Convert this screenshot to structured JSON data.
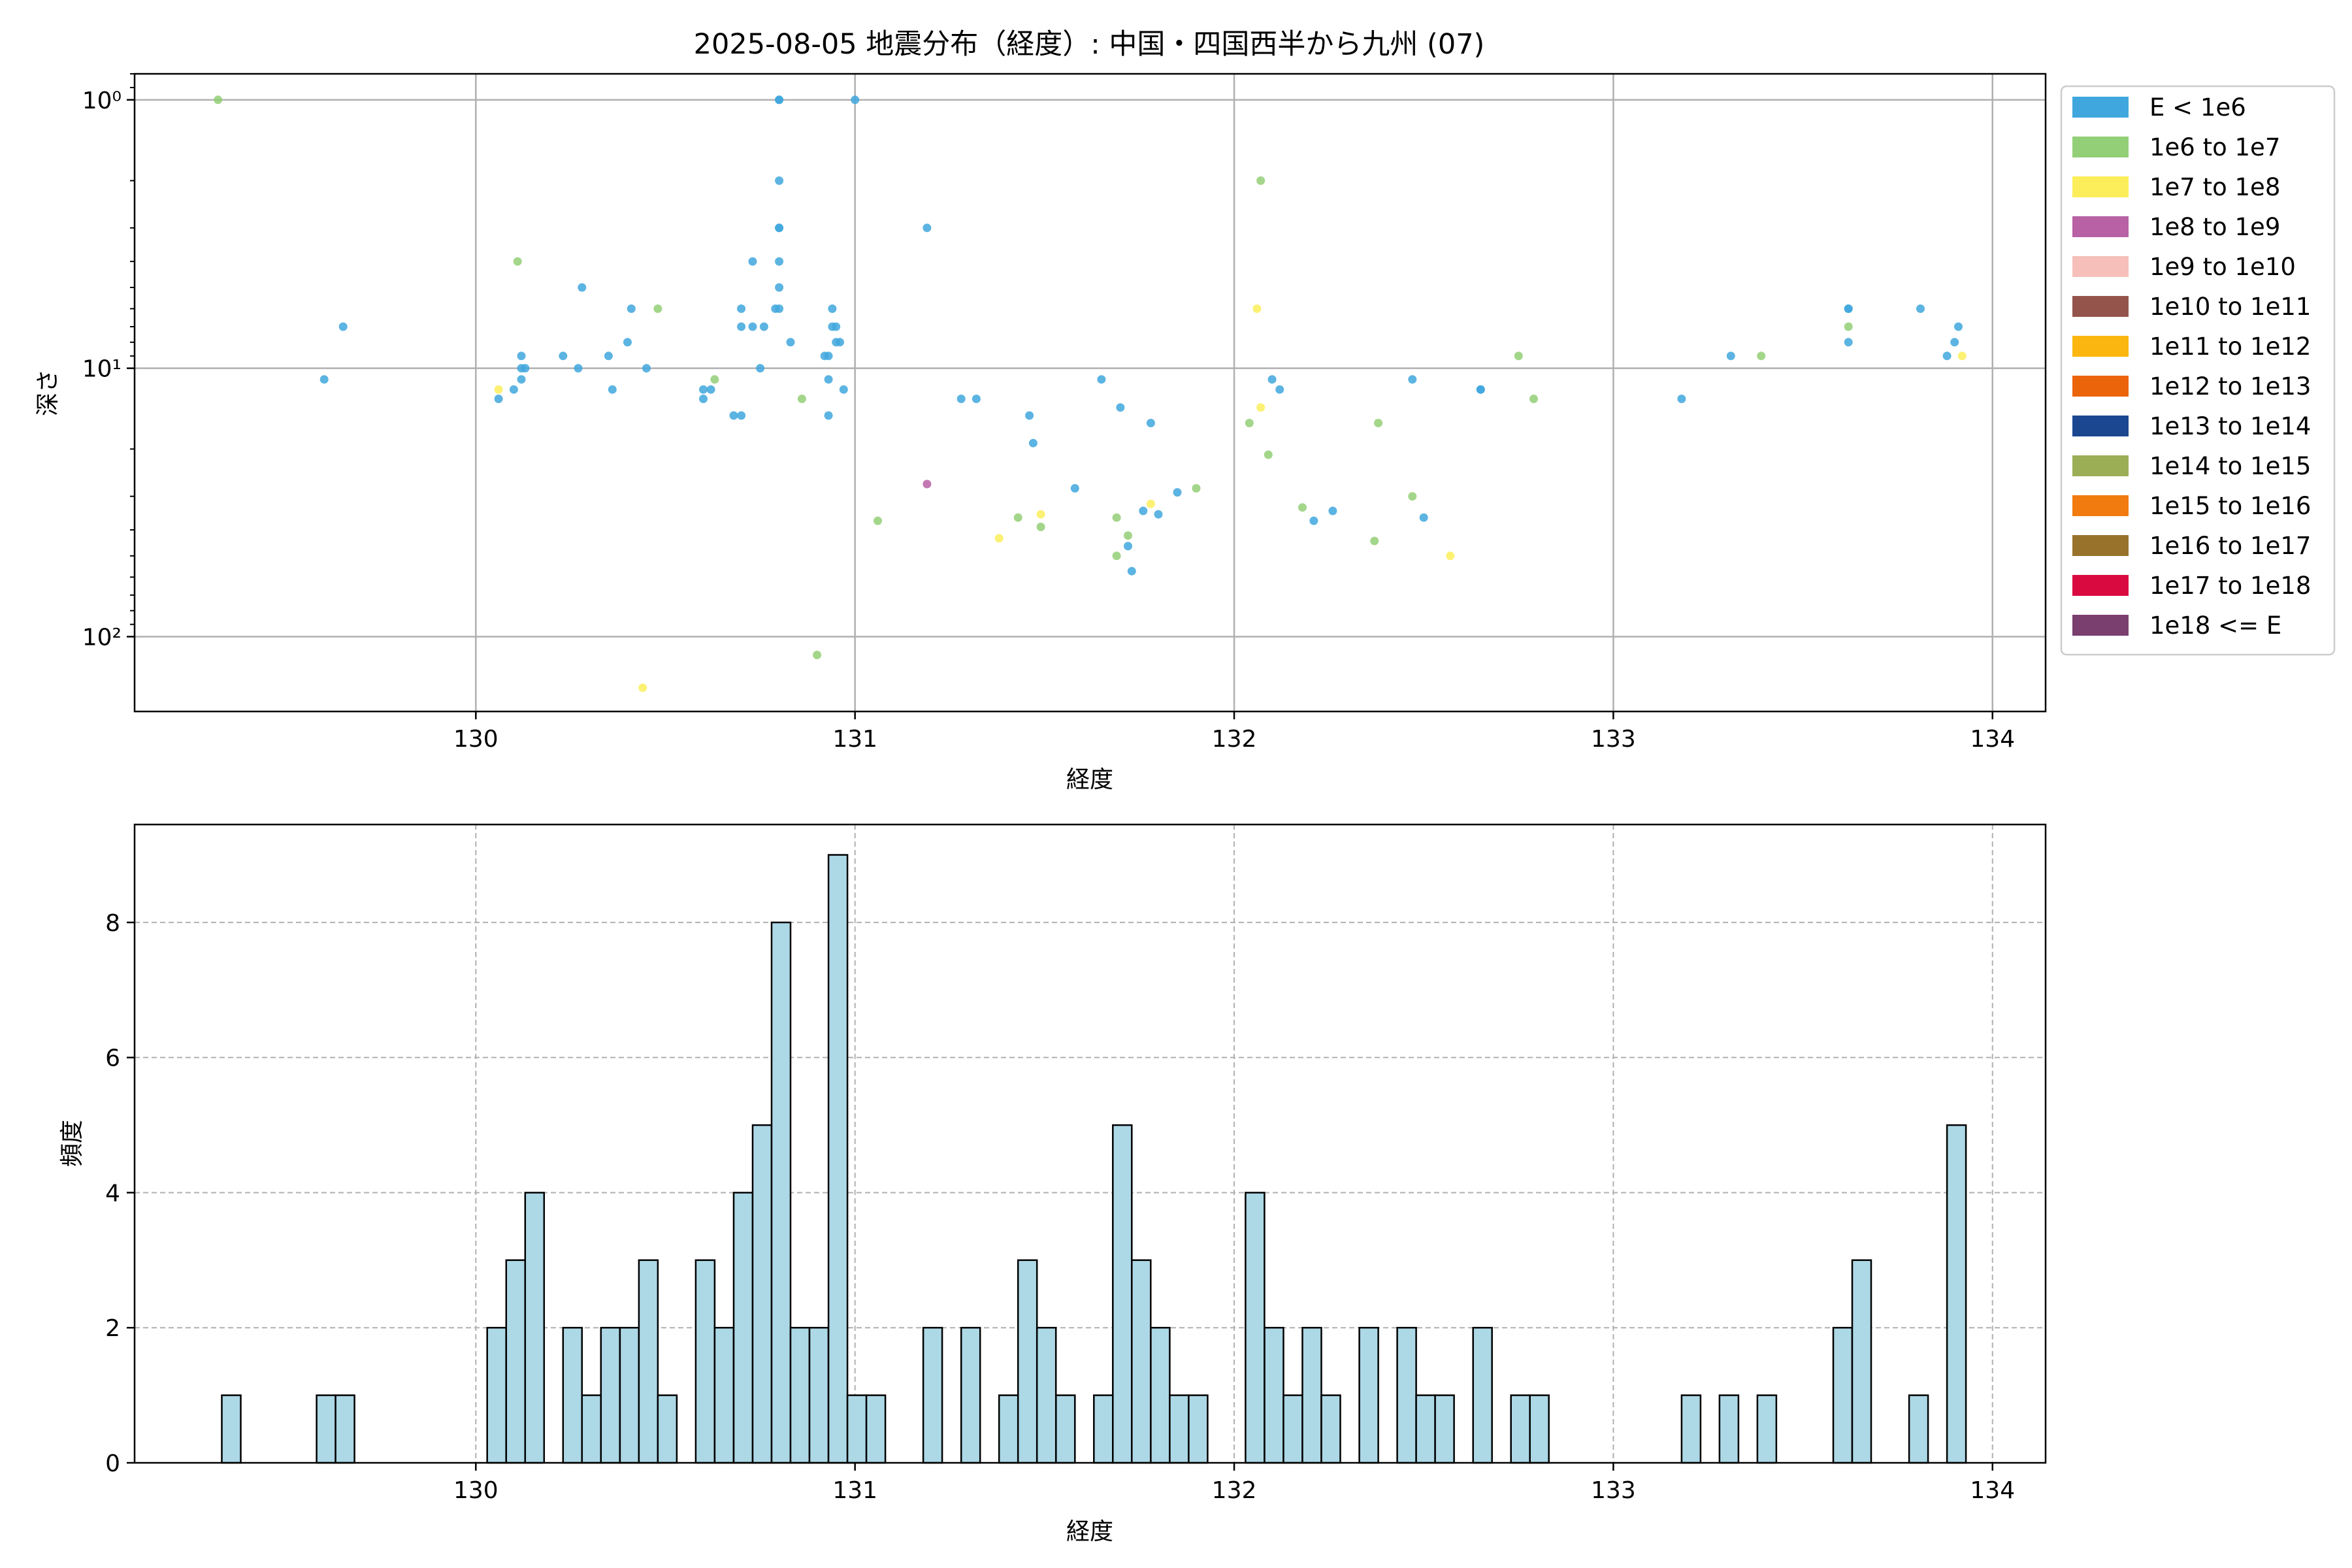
{
  "title": "2025-08-05 地震分布（経度）: 中国・四国西半から九州 (07)",
  "scatter": {
    "xlabel": "経度",
    "ylabel": "深さ",
    "y_scale": "log",
    "y_inverted": true,
    "xlim": [
      129.1,
      134.14
    ],
    "ylim_depth": [
      190,
      0.8
    ],
    "x_ticks": [
      {
        "value": 130,
        "label": "130"
      },
      {
        "value": 131,
        "label": "131"
      },
      {
        "value": 132,
        "label": "132"
      },
      {
        "value": 133,
        "label": "133"
      },
      {
        "value": 134,
        "label": "134"
      }
    ],
    "y_ticks": [
      {
        "value": 1,
        "label": "10⁰"
      },
      {
        "value": 10,
        "label": "10¹"
      },
      {
        "value": 100,
        "label": "10²"
      }
    ],
    "grid": true
  },
  "legend": {
    "placement": "outside-right",
    "items": [
      {
        "label": "E < 1e6",
        "color": "#3fa7dd"
      },
      {
        "label": "1e6 to 1e7",
        "color": "#93cf76"
      },
      {
        "label": "1e7 to 1e8",
        "color": "#fbee5a"
      },
      {
        "label": "1e8 to 1e9",
        "color": "#b861a5"
      },
      {
        "label": "1e9 to 1e10",
        "color": "#f6bfba"
      },
      {
        "label": "1e10 to 1e11",
        "color": "#94544c"
      },
      {
        "label": "1e11 to 1e12",
        "color": "#fbb60f"
      },
      {
        "label": "1e12 to 1e13",
        "color": "#ec640a"
      },
      {
        "label": "1e13 to 1e14",
        "color": "#1a4790"
      },
      {
        "label": "1e14 to 1e15",
        "color": "#9cae55"
      },
      {
        "label": "1e15 to 1e16",
        "color": "#f17b0f"
      },
      {
        "label": "1e16 to 1e17",
        "color": "#98722b"
      },
      {
        "label": "1e17 to 1e18",
        "color": "#d90a40"
      },
      {
        "label": "1e18 <= E",
        "color": "#7a3e6f"
      }
    ]
  },
  "histogram": {
    "xlabel": "経度",
    "ylabel": "頻度",
    "xlim": [
      129.1,
      134.14
    ],
    "ylim": [
      0,
      9.45
    ],
    "x_ticks": [
      {
        "value": 130,
        "label": "130"
      },
      {
        "value": 131,
        "label": "131"
      },
      {
        "value": 132,
        "label": "132"
      },
      {
        "value": 133,
        "label": "133"
      },
      {
        "value": 134,
        "label": "134"
      }
    ],
    "y_ticks": [
      {
        "value": 0,
        "label": "0"
      },
      {
        "value": 2,
        "label": "2"
      },
      {
        "value": 4,
        "label": "4"
      },
      {
        "value": 6,
        "label": "6"
      },
      {
        "value": 8,
        "label": "8"
      }
    ],
    "bar_color": "#add8e6",
    "grid": "dashed"
  },
  "chart_data": [
    {
      "type": "scatter",
      "title": "2025-08-05 地震分布（経度）: 中国・四国西半から九州 (07)",
      "xlabel": "経度",
      "ylabel": "深さ",
      "series": [
        {
          "name": "E < 1e6",
          "color": "#3fa7dd",
          "points": [
            [
              129.6,
              11
            ],
            [
              129.65,
              7
            ],
            [
              130.06,
              13
            ],
            [
              130.1,
              12
            ],
            [
              130.12,
              11
            ],
            [
              130.12,
              9
            ],
            [
              130.13,
              10
            ],
            [
              130.12,
              10
            ],
            [
              130.23,
              9
            ],
            [
              130.27,
              10
            ],
            [
              130.28,
              5
            ],
            [
              130.35,
              9
            ],
            [
              130.36,
              12
            ],
            [
              130.4,
              8
            ],
            [
              130.41,
              6
            ],
            [
              130.45,
              10
            ],
            [
              130.6,
              12
            ],
            [
              130.6,
              13
            ],
            [
              130.62,
              12
            ],
            [
              130.68,
              15
            ],
            [
              130.7,
              15
            ],
            [
              130.7,
              7
            ],
            [
              130.7,
              6
            ],
            [
              130.73,
              4
            ],
            [
              130.73,
              7
            ],
            [
              130.75,
              10
            ],
            [
              130.76,
              7
            ],
            [
              130.79,
              6
            ],
            [
              130.8,
              3
            ],
            [
              130.8,
              2
            ],
            [
              130.8,
              3
            ],
            [
              130.8,
              1
            ],
            [
              130.8,
              1
            ],
            [
              130.8,
              4
            ],
            [
              130.8,
              5
            ],
            [
              130.8,
              6
            ],
            [
              130.83,
              8
            ],
            [
              130.92,
              9
            ],
            [
              130.93,
              9
            ],
            [
              130.93,
              11
            ],
            [
              130.93,
              15
            ],
            [
              130.94,
              7
            ],
            [
              130.95,
              8
            ],
            [
              130.95,
              7
            ],
            [
              130.94,
              6
            ],
            [
              130.96,
              8
            ],
            [
              130.97,
              12
            ],
            [
              131.0,
              1
            ],
            [
              131.19,
              3
            ],
            [
              131.28,
              13
            ],
            [
              131.32,
              13
            ],
            [
              131.46,
              15
            ],
            [
              131.47,
              19
            ],
            [
              131.58,
              28
            ],
            [
              131.65,
              11
            ],
            [
              131.7,
              14
            ],
            [
              131.72,
              46
            ],
            [
              131.73,
              57
            ],
            [
              131.76,
              34
            ],
            [
              131.78,
              16
            ],
            [
              131.8,
              35
            ],
            [
              131.85,
              29
            ],
            [
              132.1,
              11
            ],
            [
              132.12,
              12
            ],
            [
              132.21,
              37
            ],
            [
              132.26,
              34
            ],
            [
              132.47,
              11
            ],
            [
              132.5,
              36
            ],
            [
              132.65,
              12
            ],
            [
              132.65,
              12
            ],
            [
              133.18,
              13
            ],
            [
              133.31,
              9
            ],
            [
              133.62,
              6
            ],
            [
              133.62,
              6
            ],
            [
              133.62,
              8
            ],
            [
              133.81,
              6
            ],
            [
              133.88,
              9
            ],
            [
              133.9,
              8
            ],
            [
              133.91,
              7
            ]
          ]
        },
        {
          "name": "1e6 to 1e7",
          "color": "#93cf76",
          "points": [
            [
              129.32,
              1
            ],
            [
              130.11,
              4
            ],
            [
              130.48,
              6
            ],
            [
              130.63,
              11
            ],
            [
              130.86,
              13
            ],
            [
              130.9,
              117
            ],
            [
              131.06,
              37
            ],
            [
              131.43,
              36
            ],
            [
              131.49,
              39
            ],
            [
              131.69,
              36
            ],
            [
              131.72,
              42
            ],
            [
              131.69,
              50
            ],
            [
              131.9,
              28
            ],
            [
              132.04,
              16
            ],
            [
              132.07,
              2
            ],
            [
              132.09,
              21
            ],
            [
              132.18,
              33
            ],
            [
              132.37,
              44
            ],
            [
              132.38,
              16
            ],
            [
              132.47,
              30
            ],
            [
              132.75,
              9
            ],
            [
              132.79,
              13
            ],
            [
              133.39,
              9
            ],
            [
              133.62,
              7
            ]
          ]
        },
        {
          "name": "1e7 to 1e8",
          "color": "#fbee5a",
          "points": [
            [
              130.06,
              12
            ],
            [
              130.44,
              155
            ],
            [
              131.38,
              43
            ],
            [
              131.49,
              35
            ],
            [
              131.78,
              32
            ],
            [
              132.06,
              6
            ],
            [
              132.07,
              14
            ],
            [
              132.57,
              50
            ],
            [
              133.92,
              9
            ]
          ]
        },
        {
          "name": "1e8 to 1e9",
          "color": "#b861a5",
          "points": [
            [
              131.19,
              27
            ]
          ]
        }
      ]
    },
    {
      "type": "bar",
      "xlabel": "経度",
      "ylabel": "頻度",
      "bins": [
        [
          129.33,
          1
        ],
        [
          129.58,
          1
        ],
        [
          129.63,
          1
        ],
        [
          130.03,
          2
        ],
        [
          130.08,
          3
        ],
        [
          130.13,
          4
        ],
        [
          130.23,
          2
        ],
        [
          130.28,
          1
        ],
        [
          130.33,
          2
        ],
        [
          130.38,
          2
        ],
        [
          130.43,
          3
        ],
        [
          130.48,
          1
        ],
        [
          130.58,
          3
        ],
        [
          130.63,
          2
        ],
        [
          130.68,
          4
        ],
        [
          130.73,
          5
        ],
        [
          130.78,
          8
        ],
        [
          130.83,
          2
        ],
        [
          130.88,
          2
        ],
        [
          130.93,
          9
        ],
        [
          130.98,
          1
        ],
        [
          131.03,
          1
        ],
        [
          131.18,
          2
        ],
        [
          131.28,
          2
        ],
        [
          131.38,
          1
        ],
        [
          131.43,
          3
        ],
        [
          131.48,
          2
        ],
        [
          131.53,
          1
        ],
        [
          131.63,
          1
        ],
        [
          131.68,
          5
        ],
        [
          131.73,
          3
        ],
        [
          131.78,
          2
        ],
        [
          131.83,
          1
        ],
        [
          131.88,
          1
        ],
        [
          132.03,
          4
        ],
        [
          132.08,
          2
        ],
        [
          132.13,
          1
        ],
        [
          132.18,
          2
        ],
        [
          132.23,
          1
        ],
        [
          132.33,
          2
        ],
        [
          132.43,
          2
        ],
        [
          132.48,
          1
        ],
        [
          132.53,
          1
        ],
        [
          132.63,
          2
        ],
        [
          132.73,
          1
        ],
        [
          132.78,
          1
        ],
        [
          133.18,
          1
        ],
        [
          133.28,
          1
        ],
        [
          133.38,
          1
        ],
        [
          133.58,
          2
        ],
        [
          133.63,
          3
        ],
        [
          133.78,
          1
        ],
        [
          133.88,
          5
        ]
      ],
      "bin_width": 0.05
    }
  ]
}
